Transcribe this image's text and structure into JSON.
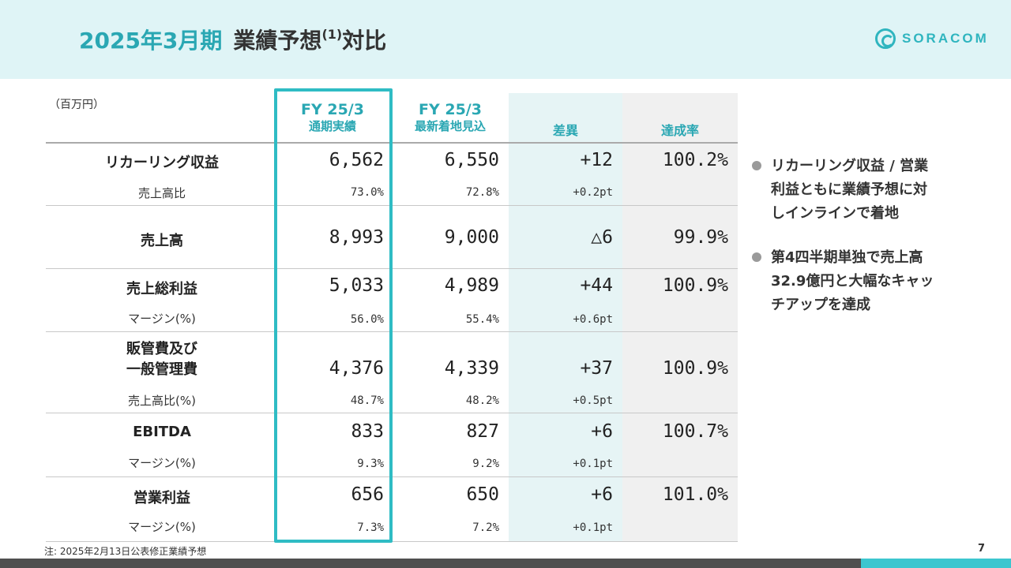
{
  "header": {
    "title_part1": "2025年3月期",
    "title_part2": "業績予想",
    "title_sup": "(1)",
    "title_part3": "対比",
    "logo_text": "SORACOM"
  },
  "table": {
    "unit": "（百万円）",
    "columns": {
      "actual_line1": "FY 25/3",
      "actual_line2": "通期実績",
      "forecast_line1": "FY 25/3",
      "forecast_line2": "最新着地見込",
      "diff": "差異",
      "rate": "達成率"
    },
    "rows": [
      {
        "label": "リカーリング収益",
        "actual": "6,562",
        "forecast": "6,550",
        "diff": "+12",
        "rate": "100.2%",
        "sub_label": "売上高比",
        "sub_actual": "73.0%",
        "sub_forecast": "72.8%",
        "sub_diff": "+0.2pt"
      },
      {
        "label": "売上高",
        "actual": "8,993",
        "forecast": "9,000",
        "diff": "△6",
        "rate": "99.9%"
      },
      {
        "label": "売上総利益",
        "actual": "5,033",
        "forecast": "4,989",
        "diff": "+44",
        "rate": "100.9%",
        "sub_label": "マージン(%)",
        "sub_actual": "56.0%",
        "sub_forecast": "55.4%",
        "sub_diff": "+0.6pt"
      },
      {
        "label_line1": "販管費及び",
        "label_line2": "一般管理費",
        "actual": "4,376",
        "forecast": "4,339",
        "diff": "+37",
        "rate": "100.9%",
        "sub_label": "売上高比(%)",
        "sub_actual": "48.7%",
        "sub_forecast": "48.2%",
        "sub_diff": "+0.5pt"
      },
      {
        "label": "EBITDA",
        "actual": "833",
        "forecast": "827",
        "diff": "+6",
        "rate": "100.7%",
        "sub_label": "マージン(%)",
        "sub_actual": "9.3%",
        "sub_forecast": "9.2%",
        "sub_diff": "+0.1pt"
      },
      {
        "label": "営業利益",
        "actual": "656",
        "forecast": "650",
        "diff": "+6",
        "rate": "101.0%",
        "sub_label": "マージン(%)",
        "sub_actual": "7.3%",
        "sub_forecast": "7.2%",
        "sub_diff": "+0.1pt"
      }
    ]
  },
  "bullets": [
    "リカーリング収益 / 営業\n利益ともに業績予想に対\nしインラインで着地",
    "第4四半期単独で売上高\n32.9億円と大幅なキャッ\nチアップを達成"
  ],
  "footer": {
    "note": "注: 2025年2月13日公表修正業績予想",
    "page": "7"
  },
  "colors": {
    "accent": "#2aa7b3",
    "highlight_border": "#2fbcc4",
    "header_bg": "#dff4f6",
    "diff_band": "#e6f4f5",
    "rate_band": "#f0f0f0"
  }
}
